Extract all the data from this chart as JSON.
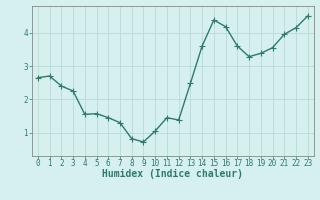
{
  "x": [
    0,
    1,
    2,
    3,
    4,
    5,
    6,
    7,
    8,
    9,
    10,
    11,
    12,
    13,
    14,
    15,
    16,
    17,
    18,
    19,
    20,
    21,
    22,
    23
  ],
  "y": [
    2.65,
    2.7,
    2.4,
    2.25,
    1.55,
    1.57,
    1.45,
    1.3,
    0.82,
    0.72,
    1.05,
    1.45,
    1.38,
    2.48,
    3.6,
    4.38,
    4.18,
    3.6,
    3.28,
    3.38,
    3.55,
    3.95,
    4.15,
    4.5
  ],
  "line_color": "#2e7b6e",
  "marker": "+",
  "marker_size": 4,
  "linewidth": 1.0,
  "xlabel": "Humidex (Indice chaleur)",
  "xlabel_fontsize": 7,
  "xlabel_color": "#2e7b6e",
  "xlabel_bold": true,
  "bg_color": "#d5f0ee",
  "grid_color": "#b8dbd8",
  "axis_color": "#888888",
  "tick_color": "#2e7b6e",
  "ylim": [
    0.3,
    4.8
  ],
  "xlim": [
    -0.5,
    23.5
  ],
  "yticks": [
    1,
    2,
    3,
    4
  ],
  "xticks": [
    0,
    1,
    2,
    3,
    4,
    5,
    6,
    7,
    8,
    9,
    10,
    11,
    12,
    13,
    14,
    15,
    16,
    17,
    18,
    19,
    20,
    21,
    22,
    23
  ],
  "tick_fontsize": 5.5
}
